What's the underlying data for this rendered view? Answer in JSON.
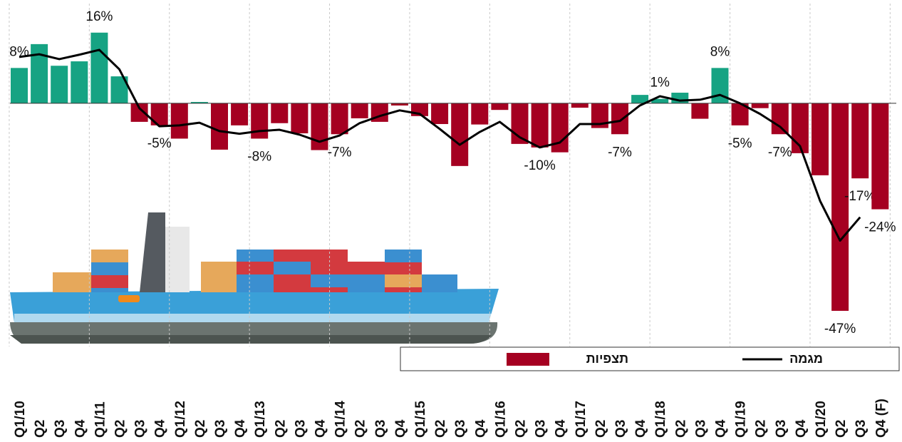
{
  "chart_data": {
    "type": "bar",
    "categories": [
      "Q1/10",
      "Q2",
      "Q3",
      "Q4",
      "Q1/11",
      "Q2",
      "Q3",
      "Q4",
      "Q1/12",
      "Q2",
      "Q3",
      "Q4",
      "Q1/13",
      "Q2",
      "Q3",
      "Q4",
      "Q1/14",
      "Q2",
      "Q3",
      "Q4",
      "Q1/15",
      "Q2",
      "Q3",
      "Q4",
      "Q1/16",
      "Q2",
      "Q3",
      "Q4",
      "Q1/17",
      "Q2",
      "Q3",
      "Q4",
      "Q1/18",
      "Q2",
      "Q3",
      "Q4",
      "Q1/19",
      "Q2",
      "Q3",
      "Q4",
      "Q1/20",
      "Q2",
      "Q3",
      "Q4 (F)"
    ],
    "series": [
      {
        "name": "תצפיות",
        "type": "bar",
        "color": "#a50021",
        "positive_color": "#16a383",
        "values": [
          8,
          13.4,
          8.5,
          9.5,
          16,
          6.1,
          -4.2,
          -5,
          -8,
          0.3,
          -10.5,
          -5,
          -8,
          -4.5,
          -6.8,
          -10.6,
          -7,
          -3.4,
          -4.2,
          -0.5,
          -2.9,
          -4.7,
          -14.2,
          -4.8,
          -1.5,
          -9.2,
          -10,
          -11.1,
          -1,
          -5.6,
          -7,
          1.9,
          1,
          2.4,
          -3.5,
          8,
          -5,
          -1.1,
          -7,
          -11.3,
          -16.3,
          -47,
          -17,
          -24
        ],
        "value_labels": [
          "8%",
          null,
          null,
          null,
          "16%",
          null,
          null,
          "-5%",
          null,
          null,
          null,
          null,
          "-8%",
          null,
          null,
          null,
          "-7%",
          null,
          null,
          null,
          null,
          null,
          null,
          null,
          null,
          null,
          "-10%",
          null,
          null,
          null,
          "-7%",
          null,
          "1%",
          null,
          null,
          "8%",
          "-5%",
          null,
          "-7%",
          null,
          null,
          "-47%",
          "-17%",
          "-24%"
        ]
      },
      {
        "name": "מגמה",
        "type": "line",
        "color": "#000000",
        "values": [
          10.5,
          11.1,
          10,
          11,
          12.1,
          7.7,
          -1.1,
          -5.2,
          -5,
          -4.4,
          -6.3,
          -6.9,
          -6.3,
          -6,
          -7.1,
          -8.7,
          -7.3,
          -4.5,
          -2.9,
          -1.6,
          -2.4,
          -5.8,
          -9.4,
          -6.5,
          -4.2,
          -7.7,
          -10,
          -8.9,
          -4.7,
          -4.7,
          -4,
          -0.5,
          1.6,
          0.6,
          0.8,
          1.9,
          0,
          -2.4,
          -5.3,
          -9.7,
          -22.1,
          -31.1,
          -25.8,
          null
        ]
      }
    ],
    "ylim": [
      -52,
      20
    ],
    "year_separators": true,
    "legend": "bottom-right"
  }
}
